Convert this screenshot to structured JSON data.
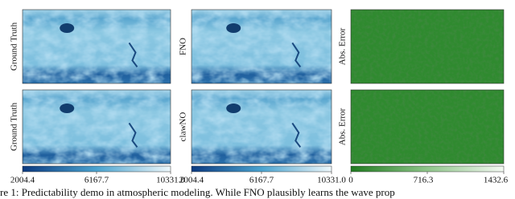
{
  "panels": [
    {
      "label": "Ground Truth"
    },
    {
      "label": "FNO"
    },
    {
      "label": "Abs. Error"
    },
    {
      "label": "Ground Truth"
    },
    {
      "label": "clawNO"
    },
    {
      "label": "Abs. Error"
    }
  ],
  "colorbars": [
    {
      "ticks": [
        "2004.4",
        "6167.7",
        "10331.0"
      ]
    },
    {
      "ticks": [
        "2004.4",
        "6167.7",
        "10331.0"
      ]
    },
    {
      "ticks": [
        "0",
        "716.3",
        "1432.6"
      ]
    }
  ],
  "caption": "re 1: Predictability demo in atmospheric modeling. While FNO plausibly learns the wave prop"
}
